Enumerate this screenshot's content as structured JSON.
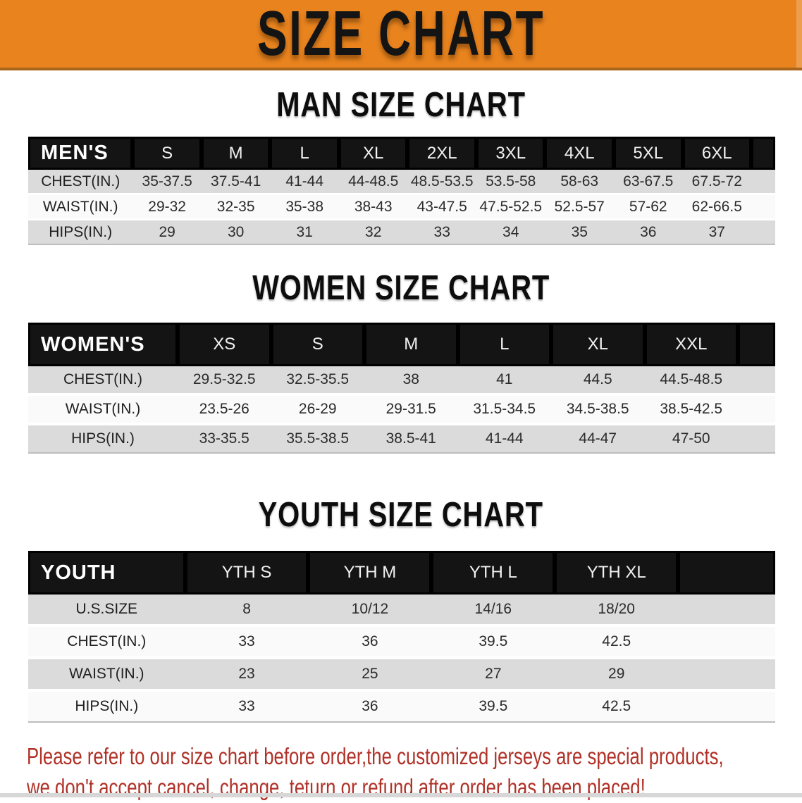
{
  "banner": {
    "title": "SIZE CHART"
  },
  "sections": [
    {
      "id": "men",
      "heading": "MAN SIZE CHART",
      "corner": "MEN'S",
      "columns": [
        "S",
        "M",
        "L",
        "XL",
        "2XL",
        "3XL",
        "4XL",
        "5XL",
        "6XL"
      ],
      "rows": [
        {
          "label": "CHEST(IN.)",
          "values": [
            "35-37.5",
            "37.5-41",
            "41-44",
            "44-48.5",
            "48.5-53.5",
            "53.5-58",
            "58-63",
            "63-67.5",
            "67.5-72"
          ]
        },
        {
          "label": "WAIST(IN.)",
          "values": [
            "29-32",
            "32-35",
            "35-38",
            "38-43",
            "43-47.5",
            "47.5-52.5",
            "52.5-57",
            "57-62",
            "62-66.5"
          ]
        },
        {
          "label": "HIPS(IN.)",
          "values": [
            "29",
            "30",
            "31",
            "32",
            "33",
            "34",
            "35",
            "36",
            "37"
          ]
        }
      ]
    },
    {
      "id": "women",
      "heading": "WOMEN SIZE CHART",
      "corner": "WOMEN'S",
      "columns": [
        "XS",
        "S",
        "M",
        "L",
        "XL",
        "XXL"
      ],
      "rows": [
        {
          "label": "CHEST(IN.)",
          "values": [
            "29.5-32.5",
            "32.5-35.5",
            "38",
            "41",
            "44.5",
            "44.5-48.5"
          ]
        },
        {
          "label": "WAIST(IN.)",
          "values": [
            "23.5-26",
            "26-29",
            "29-31.5",
            "31.5-34.5",
            "34.5-38.5",
            "38.5-42.5"
          ]
        },
        {
          "label": "HIPS(IN.)",
          "values": [
            "33-35.5",
            "35.5-38.5",
            "38.5-41",
            "41-44",
            "44-47",
            "47-50"
          ]
        }
      ]
    },
    {
      "id": "youth",
      "heading": "YOUTH SIZE CHART",
      "corner": "YOUTH",
      "columns": [
        "YTH S",
        "YTH M",
        "YTH L",
        "YTH XL"
      ],
      "rows": [
        {
          "label": "U.S.SIZE",
          "values": [
            "8",
            "10/12",
            "14/16",
            "18/20"
          ]
        },
        {
          "label": "CHEST(IN.)",
          "values": [
            "33",
            "36",
            "39.5",
            "42.5"
          ]
        },
        {
          "label": "WAIST(IN.)",
          "values": [
            "23",
            "25",
            "27",
            "29"
          ]
        },
        {
          "label": "HIPS(IN.)",
          "values": [
            "33",
            "36",
            "39.5",
            "42.5"
          ]
        }
      ]
    }
  ],
  "disclaimer": {
    "line1": "Please refer to our size chart before order,the customized jerseys are special products,",
    "line2": "we don't accept cancel, change, teturn or refund after order has been placed!"
  },
  "colors": {
    "banner_orange": "#E8831E",
    "banner_edge": "#A8651B",
    "header_black": "#141414",
    "row_gray": "#DBDBDB",
    "row_white": "#FAFAFA",
    "disclaimer_red": "#B03127"
  }
}
